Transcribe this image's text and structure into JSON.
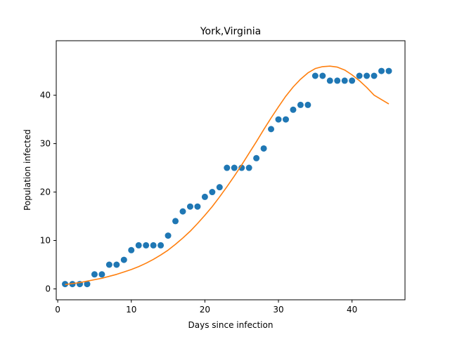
{
  "chart_data": {
    "type": "scatter",
    "title": "York,Virginia",
    "xlabel": "Days since infection",
    "ylabel": "Population infected",
    "xlim": [
      -0.2,
      47.2
    ],
    "ylim": [
      -2.25,
      51.25
    ],
    "xticks": [
      0,
      10,
      20,
      30,
      40
    ],
    "yticks": [
      0,
      10,
      20,
      30,
      40
    ],
    "grid": false,
    "colors": {
      "points": "#1f77b4",
      "fit": "#ff7f0e"
    },
    "series": [
      {
        "kind": "scatter",
        "x": [
          1,
          2,
          3,
          4,
          5,
          6,
          7,
          8,
          9,
          10,
          11,
          12,
          13,
          14,
          15,
          16,
          17,
          18,
          19,
          20,
          21,
          22,
          23,
          24,
          25,
          26,
          27,
          28,
          29,
          30,
          31,
          32,
          33,
          34,
          35,
          36,
          37,
          38,
          39,
          40,
          41,
          42,
          43,
          44,
          45
        ],
        "y": [
          1,
          1,
          1,
          1,
          3,
          3,
          5,
          5,
          6,
          8,
          9,
          9,
          9,
          9,
          11,
          14,
          16,
          17,
          17,
          19,
          20,
          21,
          25,
          25,
          25,
          25,
          27,
          29,
          33,
          35,
          35,
          37,
          38,
          38,
          44,
          44,
          43,
          43,
          43,
          43,
          44,
          44,
          44,
          45,
          45
        ]
      },
      {
        "kind": "line",
        "x": [
          1,
          2,
          3,
          4,
          5,
          6,
          7,
          8,
          9,
          10,
          11,
          12,
          13,
          14,
          15,
          16,
          17,
          18,
          19,
          20,
          21,
          22,
          23,
          24,
          25,
          26,
          27,
          28,
          29,
          30,
          31,
          32,
          33,
          34,
          35,
          36,
          37,
          38,
          39,
          40,
          41,
          42,
          43,
          44,
          45
        ],
        "y": [
          0.9,
          1.1,
          1.3,
          1.6,
          1.9,
          2.2,
          2.6,
          3.0,
          3.5,
          4.0,
          4.6,
          5.3,
          6.1,
          7.0,
          8.0,
          9.2,
          10.5,
          11.9,
          13.5,
          15.2,
          17.0,
          19.0,
          21.1,
          23.3,
          25.6,
          28.0,
          30.4,
          32.9,
          35.3,
          37.6,
          39.8,
          41.7,
          43.3,
          44.6,
          45.5,
          45.9,
          46.0,
          45.8,
          45.2,
          44.2,
          43.0,
          41.6,
          40.0,
          39.1,
          38.2
        ]
      }
    ]
  }
}
